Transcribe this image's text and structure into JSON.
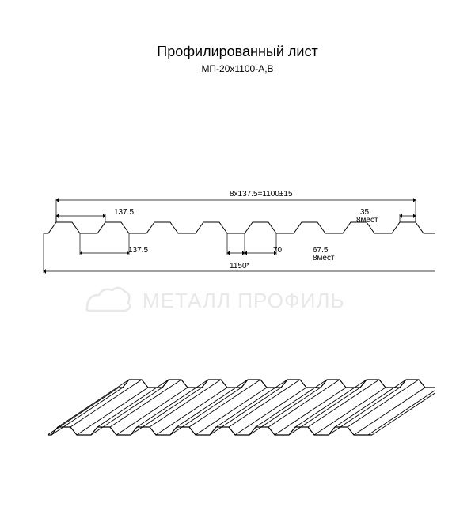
{
  "title": "Профилированный лист",
  "subtitle": "МП-20х1100-А,В",
  "watermark_text": "МЕТАЛЛ ПРОФИЛЬ",
  "dimensions": {
    "top_width": "8x137.5=1100±15",
    "left_upper": "137.5",
    "left_lower": "137.5",
    "bottom_total": "1150*",
    "mid_70": "70",
    "right_67": "67.5",
    "right_35": "35",
    "places1": "8мест",
    "places2": "8мест"
  },
  "profile": {
    "stroke": "#000000",
    "stroke_width": 1,
    "background": "#ffffff",
    "waves": 8,
    "wave_width": 62,
    "wave_height": 14,
    "top_flat": 20,
    "slope": 10,
    "bottom_flat": 22
  },
  "dim_line": {
    "stroke": "#000000",
    "stroke_width": 0.7
  },
  "iso": {
    "stroke": "#000000",
    "stroke_width": 1.2,
    "depth_dx": 90,
    "depth_dy": -60,
    "waves": 8
  },
  "colors": {
    "text": "#000000",
    "watermark": "#e8e8e8"
  },
  "fonts": {
    "title_size": 18,
    "subtitle_size": 12,
    "label_size": 10
  }
}
